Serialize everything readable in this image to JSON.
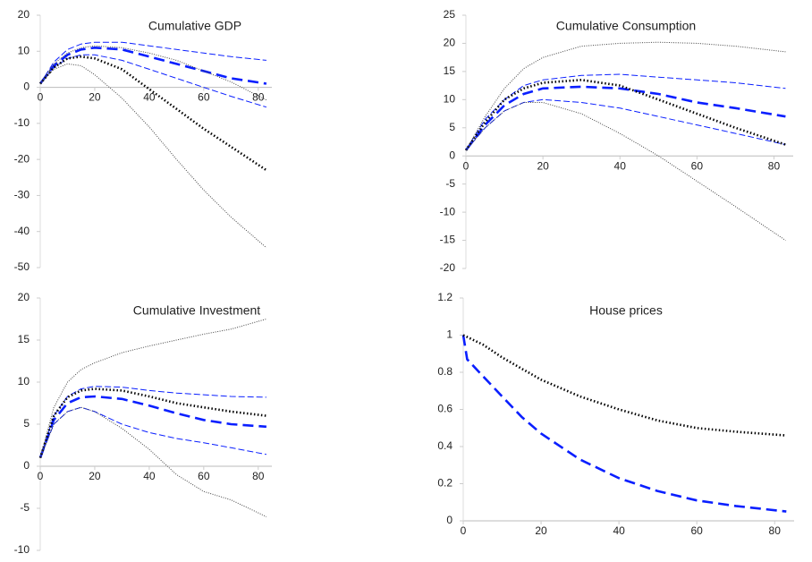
{
  "chart_data": [
    {
      "type": "line",
      "title": "Cumulative GDP",
      "x": [
        0,
        5,
        10,
        15,
        20,
        30,
        40,
        50,
        60,
        70,
        83
      ],
      "xlim": [
        0,
        85
      ],
      "xticks": [
        0,
        20,
        40,
        60,
        80
      ],
      "ylim": [
        -50,
        20
      ],
      "yticks": [
        -50,
        -40,
        -30,
        -20,
        -10,
        0,
        10,
        20
      ],
      "series": [
        {
          "color": "#0a1fff",
          "style": "dashed",
          "linewidth": 2.6,
          "values": [
            1,
            6,
            9,
            10.5,
            11,
            10.5,
            8.5,
            6.5,
            4.5,
            2.5,
            1
          ]
        },
        {
          "color": "#0a1fff",
          "style": "dashed",
          "linewidth": 1,
          "values": [
            1,
            7,
            10.5,
            12,
            12.5,
            12.5,
            11.5,
            10.5,
            9.5,
            8.5,
            7.5
          ]
        },
        {
          "color": "#0a1fff",
          "style": "dashed",
          "linewidth": 1,
          "values": [
            1,
            5.5,
            8,
            9,
            9,
            7.5,
            5,
            2.5,
            0,
            -2.5,
            -5.5
          ]
        },
        {
          "color": "#000000",
          "style": "dotted",
          "linewidth": 2.6,
          "values": [
            1,
            5.5,
            8,
            8.5,
            8,
            5,
            -0.5,
            -6,
            -11.5,
            -16.5,
            -23
          ]
        },
        {
          "color": "#444444",
          "style": "dotted",
          "linewidth": 1,
          "values": [
            1,
            6.5,
            9.5,
            11,
            11.5,
            11,
            9.5,
            7.5,
            4.5,
            1.5,
            -3.5
          ]
        },
        {
          "color": "#444444",
          "style": "dotted",
          "linewidth": 1,
          "values": [
            1,
            5,
            6.5,
            6,
            3.5,
            -3,
            -11,
            -20,
            -28.5,
            -36,
            -44.5
          ]
        }
      ]
    },
    {
      "type": "line",
      "title": "Cumulative Consumption",
      "x": [
        0,
        5,
        10,
        15,
        20,
        30,
        40,
        50,
        60,
        70,
        83
      ],
      "xlim": [
        0,
        85
      ],
      "xticks": [
        0,
        20,
        40,
        60,
        80
      ],
      "ylim": [
        -20,
        25
      ],
      "yticks": [
        -20,
        -15,
        -10,
        -5,
        0,
        5,
        10,
        15,
        20,
        25
      ],
      "series": [
        {
          "color": "#0a1fff",
          "style": "dashed",
          "linewidth": 2.6,
          "values": [
            1,
            5.5,
            9,
            11,
            12,
            12.3,
            12,
            11,
            9.5,
            8.5,
            7
          ]
        },
        {
          "color": "#0a1fff",
          "style": "dashed",
          "linewidth": 1,
          "values": [
            1,
            6.5,
            10,
            12.5,
            13.5,
            14.3,
            14.5,
            14,
            13.5,
            13,
            12
          ]
        },
        {
          "color": "#0a1fff",
          "style": "dashed",
          "linewidth": 1,
          "values": [
            1,
            5,
            8,
            9.5,
            10,
            9.5,
            8.5,
            7,
            5.5,
            4,
            2
          ]
        },
        {
          "color": "#000000",
          "style": "dotted",
          "linewidth": 2.6,
          "values": [
            1,
            6,
            10,
            12,
            13,
            13.5,
            12.5,
            10,
            7.5,
            5,
            2
          ]
        },
        {
          "color": "#444444",
          "style": "dotted",
          "linewidth": 1,
          "values": [
            1,
            7,
            12,
            15.5,
            17.5,
            19.5,
            20,
            20.2,
            20,
            19.5,
            18.5
          ]
        },
        {
          "color": "#444444",
          "style": "dotted",
          "linewidth": 1,
          "values": [
            1,
            5,
            8,
            9.5,
            9.5,
            7.5,
            4,
            0,
            -4.5,
            -9,
            -15
          ]
        }
      ]
    },
    {
      "type": "line",
      "title": "Cumulative Investment",
      "x": [
        0,
        5,
        10,
        15,
        20,
        30,
        40,
        50,
        60,
        70,
        83
      ],
      "xlim": [
        0,
        85
      ],
      "xticks": [
        0,
        20,
        40,
        60,
        80
      ],
      "ylim": [
        -10,
        20
      ],
      "yticks": [
        -10,
        -5,
        0,
        5,
        10,
        15,
        20
      ],
      "series": [
        {
          "color": "#0a1fff",
          "style": "dashed",
          "linewidth": 2.6,
          "values": [
            1,
            5.5,
            7.5,
            8.2,
            8.3,
            8,
            7.2,
            6.3,
            5.5,
            5,
            4.7
          ]
        },
        {
          "color": "#0a1fff",
          "style": "dashed",
          "linewidth": 1,
          "values": [
            1,
            6,
            8.3,
            9.2,
            9.5,
            9.4,
            9,
            8.7,
            8.5,
            8.3,
            8.2
          ]
        },
        {
          "color": "#0a1fff",
          "style": "dashed",
          "linewidth": 1,
          "values": [
            1,
            5,
            6.5,
            7,
            6.5,
            5,
            4,
            3.3,
            2.8,
            2.2,
            1.4
          ]
        },
        {
          "color": "#000000",
          "style": "dotted",
          "linewidth": 2.6,
          "values": [
            1,
            6,
            8.2,
            9,
            9.2,
            9,
            8.3,
            7.5,
            7,
            6.5,
            6
          ]
        },
        {
          "color": "#444444",
          "style": "dotted",
          "linewidth": 1,
          "values": [
            1,
            7,
            10,
            11.5,
            12.3,
            13.5,
            14.3,
            15,
            15.7,
            16.3,
            17.5
          ]
        },
        {
          "color": "#444444",
          "style": "dotted",
          "linewidth": 1,
          "values": [
            1,
            5,
            6.5,
            7,
            6.5,
            4.5,
            2,
            -1,
            -3,
            -4,
            -6
          ]
        }
      ]
    },
    {
      "type": "line",
      "title": "House prices",
      "x": [
        0,
        1,
        5,
        10,
        15,
        20,
        30,
        40,
        50,
        60,
        70,
        83
      ],
      "xlim": [
        0,
        85
      ],
      "xticks": [
        0,
        20,
        40,
        60,
        80
      ],
      "ylim": [
        0,
        1.2
      ],
      "yticks": [
        0,
        0.2,
        0.4,
        0.6,
        0.8,
        1,
        1.2
      ],
      "series": [
        {
          "color": "#0a1fff",
          "style": "dashed",
          "linewidth": 2.6,
          "values": [
            1,
            0.87,
            0.78,
            0.67,
            0.56,
            0.47,
            0.33,
            0.23,
            0.16,
            0.11,
            0.08,
            0.05
          ]
        },
        {
          "color": "#000000",
          "style": "dotted",
          "linewidth": 2.6,
          "values": [
            1,
            0.99,
            0.95,
            0.88,
            0.82,
            0.76,
            0.67,
            0.6,
            0.54,
            0.5,
            0.48,
            0.46
          ]
        }
      ]
    }
  ]
}
